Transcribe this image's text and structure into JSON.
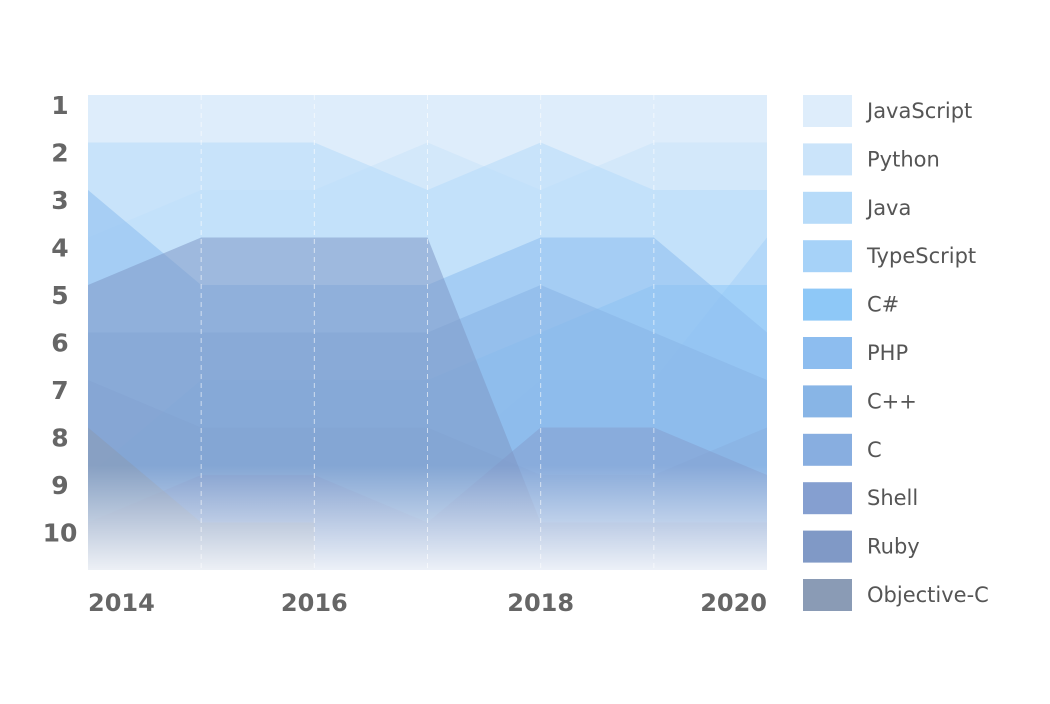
{
  "chart_data": {
    "type": "rank-area",
    "x": [
      2014,
      2015,
      2016,
      2017,
      2018,
      2019,
      2020
    ],
    "xticks": [
      2014,
      2016,
      2018,
      2020
    ],
    "ylim": [
      0.5,
      10.5
    ],
    "yticks": [
      1,
      2,
      3,
      4,
      5,
      6,
      7,
      8,
      9,
      10
    ],
    "y_inverted": true,
    "grid": true,
    "legend": "right",
    "series": [
      {
        "name": "JavaScript",
        "color": "#deedfb",
        "values": [
          1,
          1,
          1,
          1,
          1,
          1,
          1
        ]
      },
      {
        "name": "Python",
        "color": "#cbe4fa",
        "values": [
          4,
          3,
          3,
          2,
          3,
          2,
          2
        ]
      },
      {
        "name": "Java",
        "color": "#b7dbf9",
        "values": [
          2,
          2,
          2,
          3,
          2,
          3,
          3
        ]
      },
      {
        "name": "TypeScript",
        "color": "#a6d2f8",
        "values": [
          null,
          null,
          null,
          9,
          7,
          7,
          4
        ]
      },
      {
        "name": "C#",
        "color": "#8ec8f7",
        "values": [
          9,
          7,
          7,
          7,
          6,
          5,
          5
        ]
      },
      {
        "name": "PHP",
        "color": "#8dbdef",
        "values": [
          3,
          5,
          5,
          5,
          4,
          4,
          6
        ]
      },
      {
        "name": "C++",
        "color": "#88b5e6",
        "values": [
          6,
          6,
          6,
          6,
          5,
          6,
          7
        ]
      },
      {
        "name": "C",
        "color": "#88aee0",
        "values": [
          7,
          8,
          8,
          8,
          9,
          9,
          8
        ]
      },
      {
        "name": "Shell",
        "color": "#859fd0",
        "values": [
          10,
          9,
          9,
          10,
          8,
          8,
          9
        ]
      },
      {
        "name": "Ruby",
        "color": "#8099c6",
        "values": [
          5,
          4,
          4,
          4,
          10,
          10,
          10
        ]
      },
      {
        "name": "Objective-C",
        "color": "#8a9bb5",
        "values": [
          8,
          10,
          10,
          null,
          null,
          null,
          null
        ]
      }
    ]
  }
}
